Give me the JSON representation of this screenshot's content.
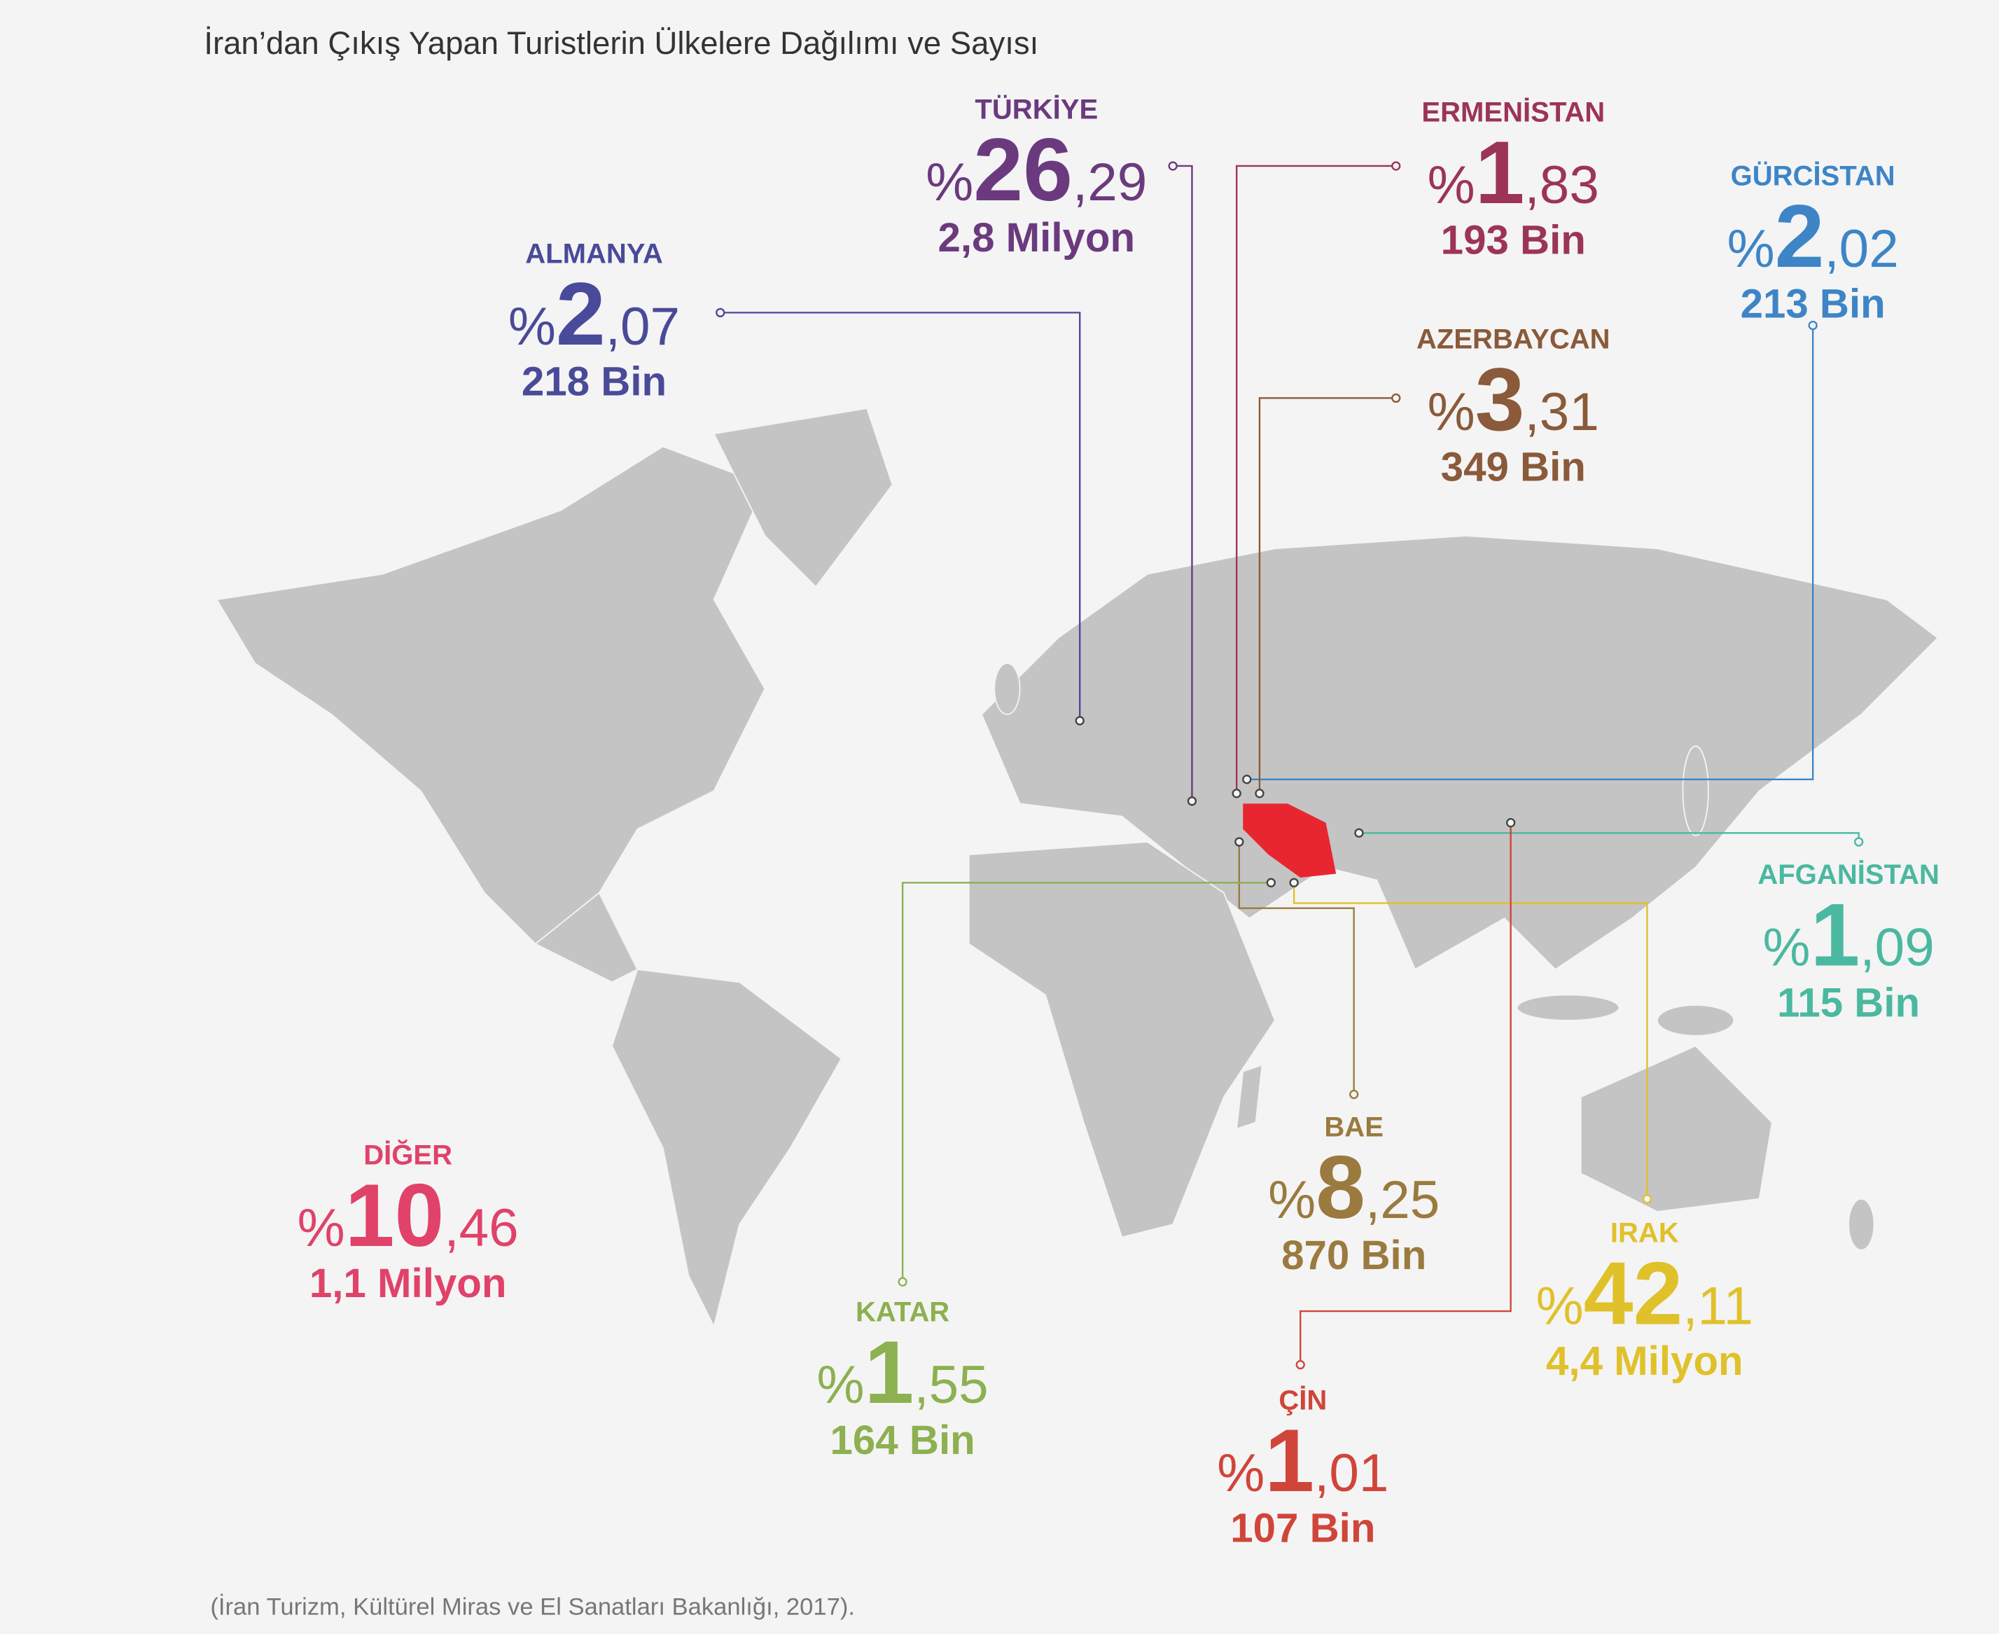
{
  "title": "İran’dan Çıkış Yapan Turistlerin Ülkelere Dağılımı ve Sayısı",
  "source": "(İran Turizm, Kültürel Miras ve El Sanatları Bakanlığı, 2017).",
  "labels": [
    {
      "name": "TÜRKİYE",
      "percent_sign": "%",
      "whole": "26",
      "fraction": ",29",
      "count": "2,8 Milyon",
      "color": "#6b3a7e"
    },
    {
      "name": "ERMENİSTAN",
      "percent_sign": "%",
      "whole": "1",
      "fraction": ",83",
      "count": "193 Bin",
      "color": "#9c3458"
    },
    {
      "name": "GÜRCİSTAN",
      "percent_sign": "%",
      "whole": "2",
      "fraction": ",02",
      "count": "213 Bin",
      "color": "#3d85c6"
    },
    {
      "name": "ALMANYA",
      "percent_sign": "%",
      "whole": "2",
      "fraction": ",07",
      "count": "218 Bin",
      "color": "#4a4a9a"
    },
    {
      "name": "AZERBAYCAN",
      "percent_sign": "%",
      "whole": "3",
      "fraction": ",31",
      "count": "349 Bin",
      "color": "#8a5a3a"
    },
    {
      "name": "AFGANİSTAN",
      "percent_sign": "%",
      "whole": "1",
      "fraction": ",09",
      "count": "115 Bin",
      "color": "#4bb8a0"
    },
    {
      "name": "BAE",
      "percent_sign": "%",
      "whole": "8",
      "fraction": ",25",
      "count": "870 Bin",
      "color": "#9a7a3e"
    },
    {
      "name": "IRAK",
      "percent_sign": "%",
      "whole": "42",
      "fraction": ",11",
      "count": "4,4 Milyon",
      "color": "#e0c12a"
    },
    {
      "name": "ÇİN",
      "percent_sign": "%",
      "whole": "1",
      "fraction": ",01",
      "count": "107 Bin",
      "color": "#d0453a"
    },
    {
      "name": "KATAR",
      "percent_sign": "%",
      "whole": "1",
      "fraction": ",55",
      "count": "164 Bin",
      "color": "#8db050"
    },
    {
      "name": "DİĞER",
      "percent_sign": "%",
      "whole": "10",
      "fraction": ",46",
      "count": "1,1 Milyon",
      "color": "#e0426a"
    }
  ]
}
